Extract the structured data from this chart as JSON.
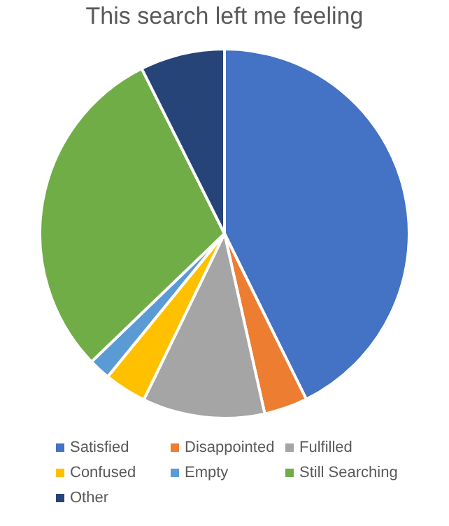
{
  "chart_data": {
    "type": "pie",
    "title": "This search left me feeling",
    "categories": [
      "Satisfied",
      "Disappointed",
      "Fulfilled",
      "Confused",
      "Empty",
      "Still Searching",
      "Other"
    ],
    "values": [
      42.7,
      3.8,
      10.7,
      3.7,
      1.9,
      29.8,
      7.4
    ],
    "colors": [
      "#4472c4",
      "#ed7d31",
      "#a5a5a5",
      "#ffc000",
      "#5b9bd5",
      "#70ad47",
      "#264478"
    ],
    "legend": "bottom"
  }
}
